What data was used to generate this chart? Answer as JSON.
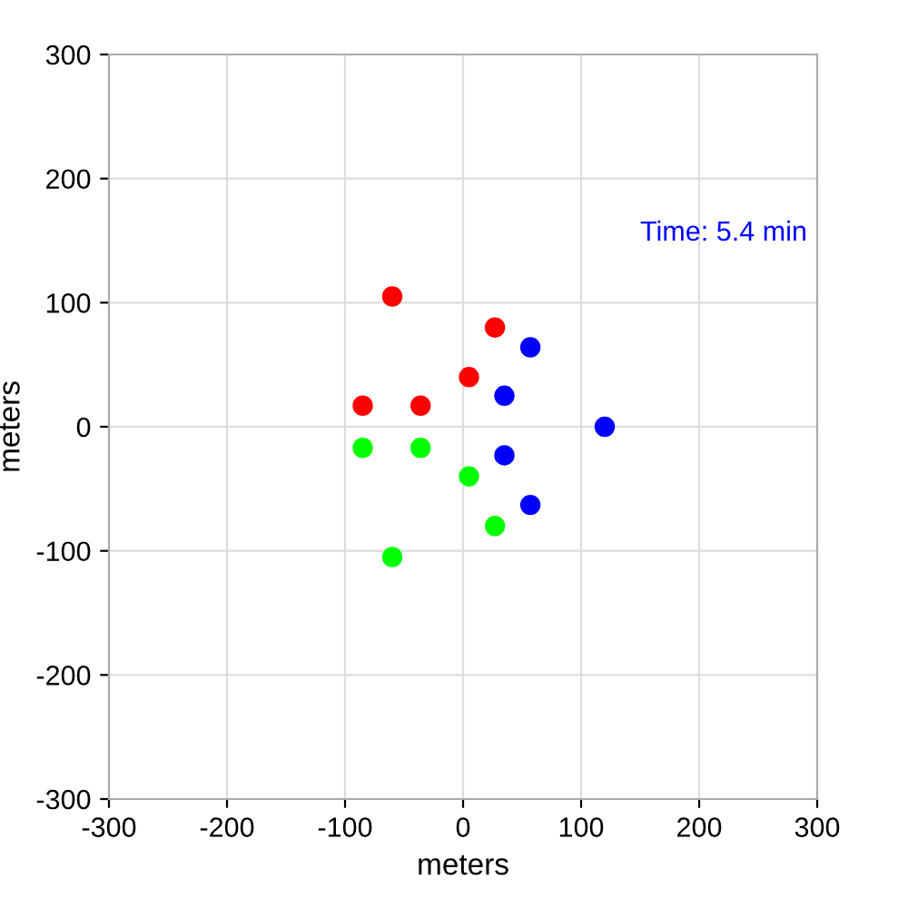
{
  "chart_data": {
    "type": "scatter",
    "xlabel": "meters",
    "ylabel": "meters",
    "annotations": [
      "Time: 5.4 min"
    ],
    "series": [
      {
        "color": "#ff0000",
        "x": [
          -60,
          27,
          5,
          -85,
          -36
        ],
        "values": [
          105,
          80,
          40,
          17,
          17
        ]
      },
      {
        "color": "#0000ff",
        "x": [
          57,
          35,
          120,
          35,
          57
        ],
        "values": [
          64,
          25,
          0,
          -23,
          -63
        ]
      },
      {
        "color": "#00ff00",
        "x": [
          -85,
          -36,
          5,
          27,
          -60
        ],
        "values": [
          -17,
          -17,
          -40,
          -80,
          -105
        ]
      }
    ],
    "xlim": [
      -300,
      300
    ],
    "ylim": [
      -300,
      300
    ],
    "xticks": [
      -300,
      -200,
      -100,
      0,
      100,
      200,
      300
    ],
    "yticks": [
      -300,
      -200,
      -100,
      0,
      100,
      200,
      300
    ],
    "grid": true,
    "marker": "circle"
  }
}
